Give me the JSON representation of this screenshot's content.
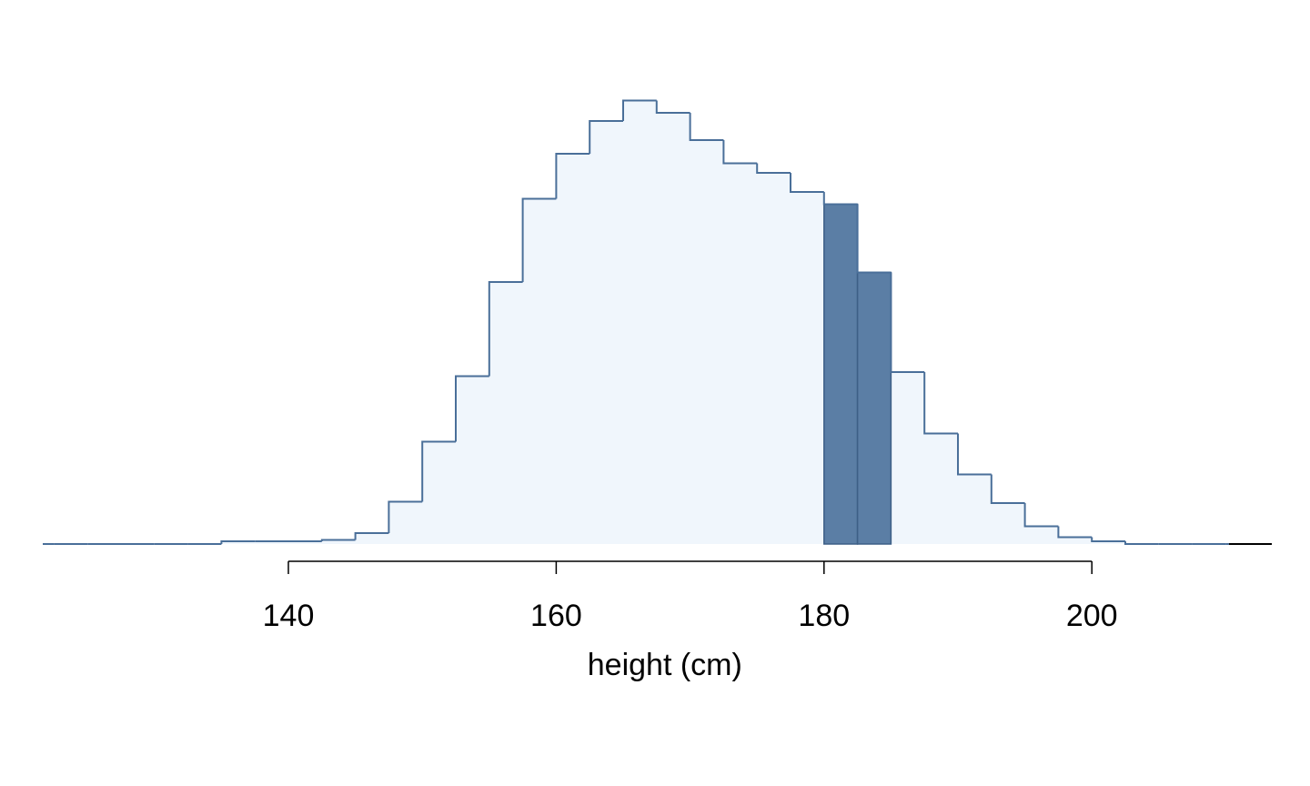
{
  "chart_data": {
    "type": "bar",
    "subtype": "step-histogram",
    "title": "",
    "xlabel": "height (cm)",
    "ylabel": "",
    "x_axis_line_range": [
      140,
      200
    ],
    "xlim": [
      121.5,
      213.5
    ],
    "x_ticks": [
      140,
      160,
      180,
      200
    ],
    "y_axis_shown": false,
    "grid": false,
    "legend": "none",
    "bin_width": 2.5,
    "bin_edges": [
      120,
      122.5,
      125,
      127.5,
      130,
      132.5,
      135,
      137.5,
      140,
      142.5,
      145,
      147.5,
      150,
      152.5,
      155,
      157.5,
      160,
      162.5,
      165,
      167.5,
      170,
      172.5,
      175,
      177.5,
      180,
      182.5,
      185,
      187.5,
      190,
      192.5,
      195,
      197.5,
      200,
      202.5,
      205,
      207.5,
      210,
      212.5,
      215
    ],
    "values": [
      0,
      0,
      0,
      0,
      0,
      0,
      0.2,
      0.2,
      0.2,
      0.3,
      0.8,
      3.1,
      7.5,
      12.3,
      19.2,
      25.3,
      28.6,
      31.0,
      32.5,
      31.6,
      29.6,
      27.9,
      27.2,
      25.8,
      24.9,
      19.9,
      12.6,
      8.1,
      5.1,
      3.0,
      1.3,
      0.5,
      0.2,
      0,
      0,
      0,
      0,
      0
    ],
    "highlighted_bins": [
      [
        180,
        182.5
      ],
      [
        182.5,
        185
      ]
    ],
    "colors": {
      "fill": "#f0f6fc",
      "outline": "#4a6f99",
      "highlight_fill": "#5b7ea5",
      "highlight_outline": "#3d5f86",
      "axis": "#000000",
      "baseline_right": "#000000"
    }
  }
}
